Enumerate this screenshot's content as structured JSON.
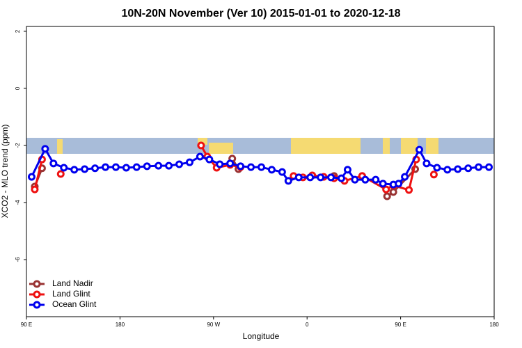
{
  "chart_data": {
    "type": "line",
    "title": "10N-20N November (Ver 10)   2015-01-01 to 2020-12-18",
    "x_label": "Longitude",
    "y_label": "XCO2 - MLO trend (ppm)",
    "xlim": [
      90,
      540
    ],
    "ylim": [
      -8,
      2.17
    ],
    "xticks": [
      {
        "value": 90,
        "label": "90 E"
      },
      180,
      {
        "value": 270,
        "label": "90 W"
      },
      {
        "value": 360,
        "label": "0"
      },
      {
        "value": 450,
        "label": "90 E"
      },
      {
        "value": 540,
        "label": "180"
      }
    ],
    "yticks": [
      2,
      0,
      -2,
      -4,
      -6
    ],
    "legend": "bottom-left",
    "series": [
      {
        "name": "Land Nadir",
        "color": "#993333",
        "x": [
          98,
          105,
          110,
          288,
          294,
          300,
          386,
          396,
          413,
          420,
          437,
          443,
          464
        ],
        "values": [
          -3.44,
          -2.8,
          null,
          -2.46,
          -2.83,
          null,
          -3.07,
          null,
          -3.07,
          null,
          -3.78,
          -3.63,
          -2.83
        ]
      },
      {
        "name": "Land Glint",
        "color": "#ee1111",
        "x": [
          98,
          105,
          110,
          123,
          130,
          258,
          264,
          273,
          286,
          296,
          300,
          347,
          356,
          365,
          376,
          386,
          396,
          413,
          436,
          443,
          458,
          465,
          470,
          482
        ],
        "values": [
          -3.54,
          -2.49,
          null,
          -3.0,
          null,
          -2.0,
          -2.39,
          -2.78,
          -2.68,
          -2.76,
          null,
          -3.07,
          -3.12,
          -3.05,
          -3.1,
          -3.15,
          -3.24,
          -3.07,
          -3.54,
          -3.4,
          -3.56,
          -2.49,
          null,
          -3.02
        ]
      },
      {
        "name": "Ocean Glint",
        "color": "#0000ee",
        "x": [
          95,
          108,
          116,
          126,
          136,
          146,
          156,
          166,
          176,
          186,
          196,
          206,
          217,
          227,
          237,
          247,
          257,
          266,
          276,
          286,
          296,
          306,
          316,
          326,
          336,
          342,
          352,
          363,
          373,
          383,
          393,
          399,
          406,
          416,
          426,
          433,
          443,
          448,
          454,
          468,
          475,
          485,
          495,
          505,
          515,
          525,
          535
        ],
        "values": [
          -3.1,
          -2.12,
          -2.63,
          -2.78,
          -2.85,
          -2.83,
          -2.8,
          -2.76,
          -2.76,
          -2.78,
          -2.76,
          -2.73,
          -2.71,
          -2.71,
          -2.66,
          -2.59,
          -2.39,
          -2.49,
          -2.66,
          -2.63,
          -2.73,
          -2.76,
          -2.76,
          -2.85,
          -2.93,
          -3.24,
          -3.12,
          -3.12,
          -3.12,
          -3.12,
          -3.15,
          -2.85,
          -3.2,
          -3.2,
          -3.2,
          -3.34,
          -3.37,
          -3.34,
          -3.1,
          -2.15,
          -2.63,
          -2.78,
          -2.85,
          -2.83,
          -2.8,
          -2.76,
          -2.76
        ]
      }
    ]
  }
}
